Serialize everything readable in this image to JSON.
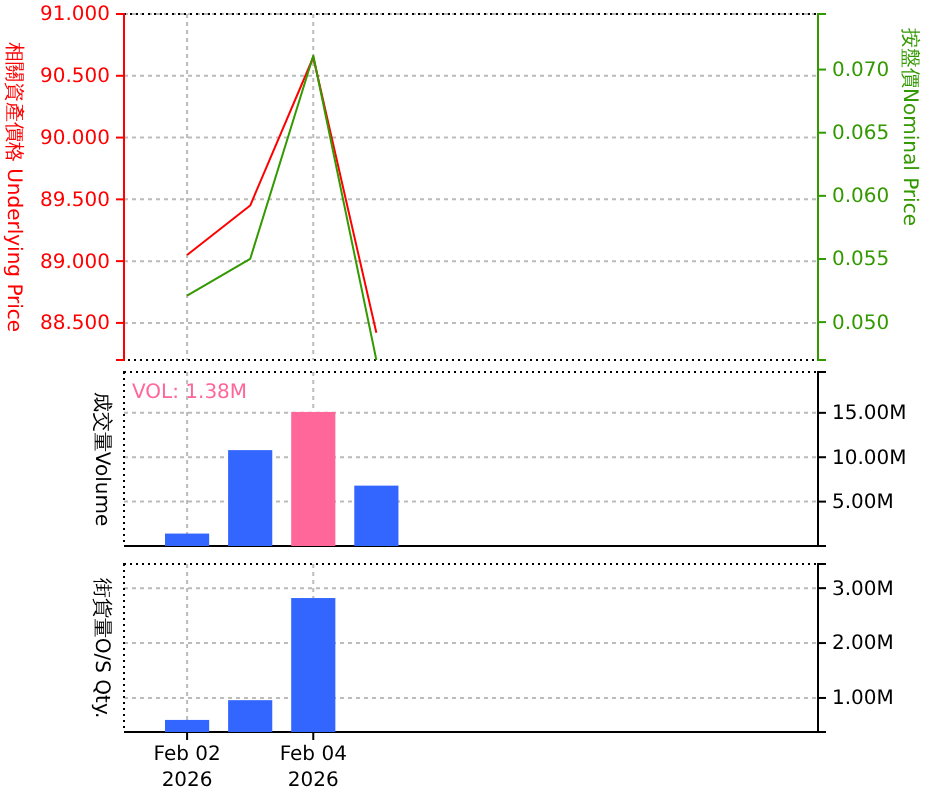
{
  "chart_data": [
    {
      "type": "line",
      "ylabel": "相關資產價格 Underlying Price",
      "y2label": "按盤價Nominal Price",
      "x": [
        "2026-02-02",
        "2026-02-03",
        "2026-02-04",
        "2026-02-05"
      ],
      "series": [
        {
          "color": "#ff0000",
          "values": [
            89.05,
            89.45,
            90.65,
            88.42
          ]
        },
        {
          "color": "#339900",
          "axis": "y2",
          "values": [
            0.0521,
            0.055,
            0.0711,
            0.047
          ]
        }
      ],
      "xlim": [
        "2026-02-01",
        "2026-02-12"
      ],
      "xticks": [
        {
          "value": "2026-02-02",
          "label": null
        },
        {
          "value": "2026-02-04",
          "label": null
        }
      ],
      "ylim": [
        88.2,
        91.0
      ],
      "yticks": [
        {
          "value": 88.5,
          "label": "88.500"
        },
        {
          "value": 89,
          "label": "89.000"
        },
        {
          "value": 89.5,
          "label": "89.500"
        },
        {
          "value": 90,
          "label": "90.000"
        },
        {
          "value": 90.5,
          "label": "90.500"
        },
        {
          "value": 91,
          "label": "91.000"
        }
      ],
      "y2lim": [
        0.047,
        0.0744
      ],
      "y2ticks": [
        {
          "value": 0.05,
          "label": "0.050"
        },
        {
          "value": 0.055,
          "label": "0.055"
        },
        {
          "value": 0.06,
          "label": "0.060"
        },
        {
          "value": 0.065,
          "label": "0.065"
        },
        {
          "value": 0.07,
          "label": "0.070"
        }
      ],
      "grid": true,
      "tick_labels": "y"
    },
    {
      "type": "bar",
      "ylabel": "成交量Volume",
      "annotations": [
        "VOL: 1.38M"
      ],
      "x": [
        "2026-02-02",
        "2026-02-03",
        "2026-02-04",
        "2026-02-05"
      ],
      "values": [
        1.4,
        10.8,
        15.1,
        6.8
      ],
      "colors": [
        "#3366ff",
        "#3366ff",
        "#ff6699",
        "#3366ff"
      ],
      "xlim": [
        "2026-02-01",
        "2026-02-12"
      ],
      "xticks": [
        {
          "value": "2026-02-02",
          "label": null
        },
        {
          "value": "2026-02-04",
          "label": null
        }
      ],
      "ylim": [
        0,
        19.6
      ],
      "yticks": [
        {
          "value": 5,
          "label": "5.00M"
        },
        {
          "value": 10,
          "label": "10.00M"
        },
        {
          "value": 15,
          "label": "15.00M"
        }
      ],
      "grid": true,
      "tick_labels": "y"
    },
    {
      "type": "bar",
      "ylabel": "街貨量O/S Qty.",
      "x": [
        "2026-02-02",
        "2026-02-03",
        "2026-02-04"
      ],
      "values": [
        0.6,
        0.96,
        2.82
      ],
      "colors": [
        "#3366ff",
        "#3366ff",
        "#3366ff"
      ],
      "xlim": [
        "2026-02-01",
        "2026-02-12"
      ],
      "xticks": [
        {
          "value": "2026-02-02",
          "label": "Feb 02 2026"
        },
        {
          "value": "2026-02-04",
          "label": "Feb 04 2026"
        }
      ],
      "ylim": [
        0.38,
        3.44
      ],
      "yticks": [
        {
          "value": 1,
          "label": "1.00M"
        },
        {
          "value": 2,
          "label": "2.00M"
        },
        {
          "value": 3,
          "label": "3.00M"
        }
      ],
      "grid": true
    }
  ]
}
